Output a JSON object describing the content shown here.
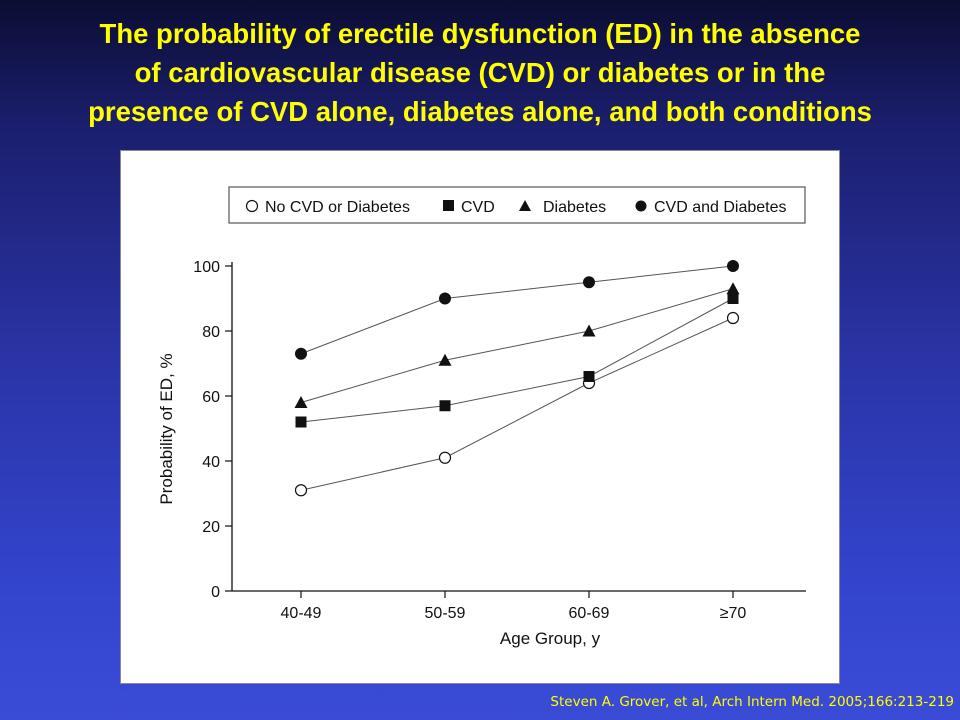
{
  "slide": {
    "title_lines": [
      "The probability of erectile dysfunction (ED) in the absence",
      "of cardiovascular disease (CVD) or diabetes or in the",
      "presence of CVD alone, diabetes alone, and both conditions"
    ],
    "citation": "Steven A. Grover, et al, Arch Intern Med. 2005;166:213-219"
  },
  "chart_data": {
    "type": "line",
    "title": "",
    "xlabel": "Age Group, y",
    "ylabel": "Probability of ED, %",
    "categories": [
      "40-49",
      "50-59",
      "60-69",
      "≥70"
    ],
    "ylim": [
      0,
      100
    ],
    "yticks": [
      0,
      20,
      40,
      60,
      80,
      100
    ],
    "grid": false,
    "legend_position": "top",
    "series": [
      {
        "name": "No CVD or Diabetes",
        "marker": "open-circle",
        "values": [
          31,
          41,
          64,
          84
        ]
      },
      {
        "name": "CVD",
        "marker": "filled-square",
        "values": [
          52,
          57,
          66,
          90
        ]
      },
      {
        "name": "Diabetes",
        "marker": "filled-triangle",
        "values": [
          58,
          71,
          80,
          93
        ]
      },
      {
        "name": "CVD and Diabetes",
        "marker": "filled-circle",
        "values": [
          73,
          90,
          95,
          100
        ]
      }
    ],
    "colors": {
      "line": "#555555",
      "marker": "#111111",
      "axis": "#111111"
    }
  }
}
